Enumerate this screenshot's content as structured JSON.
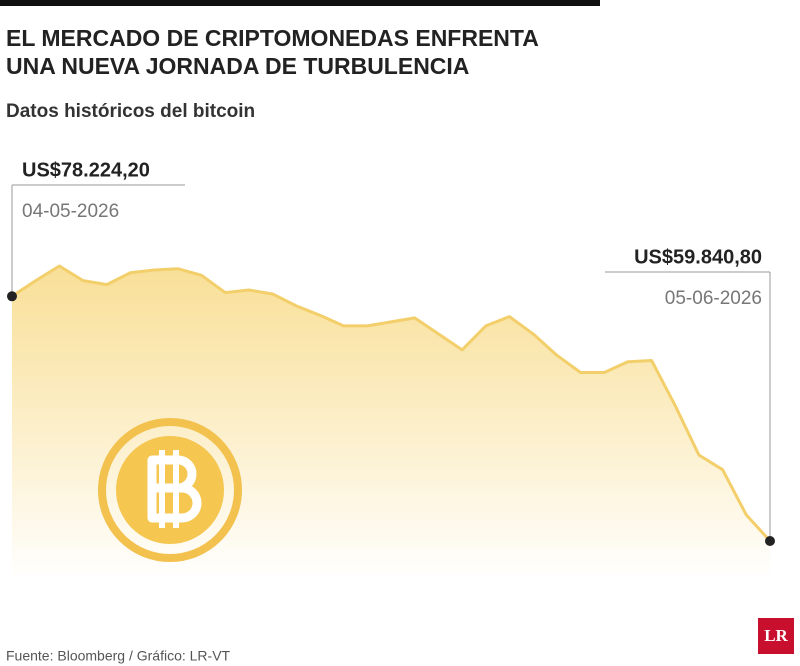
{
  "chart_data": {
    "type": "area",
    "title": [
      "EL MERCADO DE CRIPTOMONEDAS ENFRENTA",
      "UNA NUEVA JORNADA DE TURBULENCIA"
    ],
    "subtitle": "Datos históricos del bitcoin",
    "source": "Fuente: Bloomberg / Gráfico: LR-VT",
    "color": "#f3cf6b",
    "categories": [
      "04-05-2026",
      null,
      null,
      null,
      null,
      null,
      null,
      null,
      null,
      null,
      null,
      null,
      null,
      null,
      null,
      null,
      null,
      null,
      null,
      null,
      null,
      null,
      null,
      null,
      null,
      null,
      null,
      null,
      null,
      null,
      null,
      null,
      "05-06-2026"
    ],
    "values": [
      78224.2,
      79400,
      80500,
      79400,
      79100,
      80000,
      80200,
      80300,
      79800,
      78500,
      78700,
      78400,
      77500,
      76800,
      76000,
      76000,
      76300,
      76600,
      75400,
      74200,
      76000,
      76700,
      75400,
      73800,
      72500,
      72500,
      73300,
      73400,
      70000,
      66300,
      65200,
      61800,
      59840.8
    ],
    "value_labels": [
      "US$78.224,20",
      null,
      null,
      null,
      null,
      null,
      null,
      null,
      null,
      null,
      null,
      null,
      null,
      null,
      null,
      null,
      null,
      null,
      null,
      null,
      null,
      null,
      null,
      null,
      null,
      null,
      null,
      null,
      null,
      null,
      null,
      null,
      "US$59.840,80"
    ]
  },
  "logo": "LR"
}
